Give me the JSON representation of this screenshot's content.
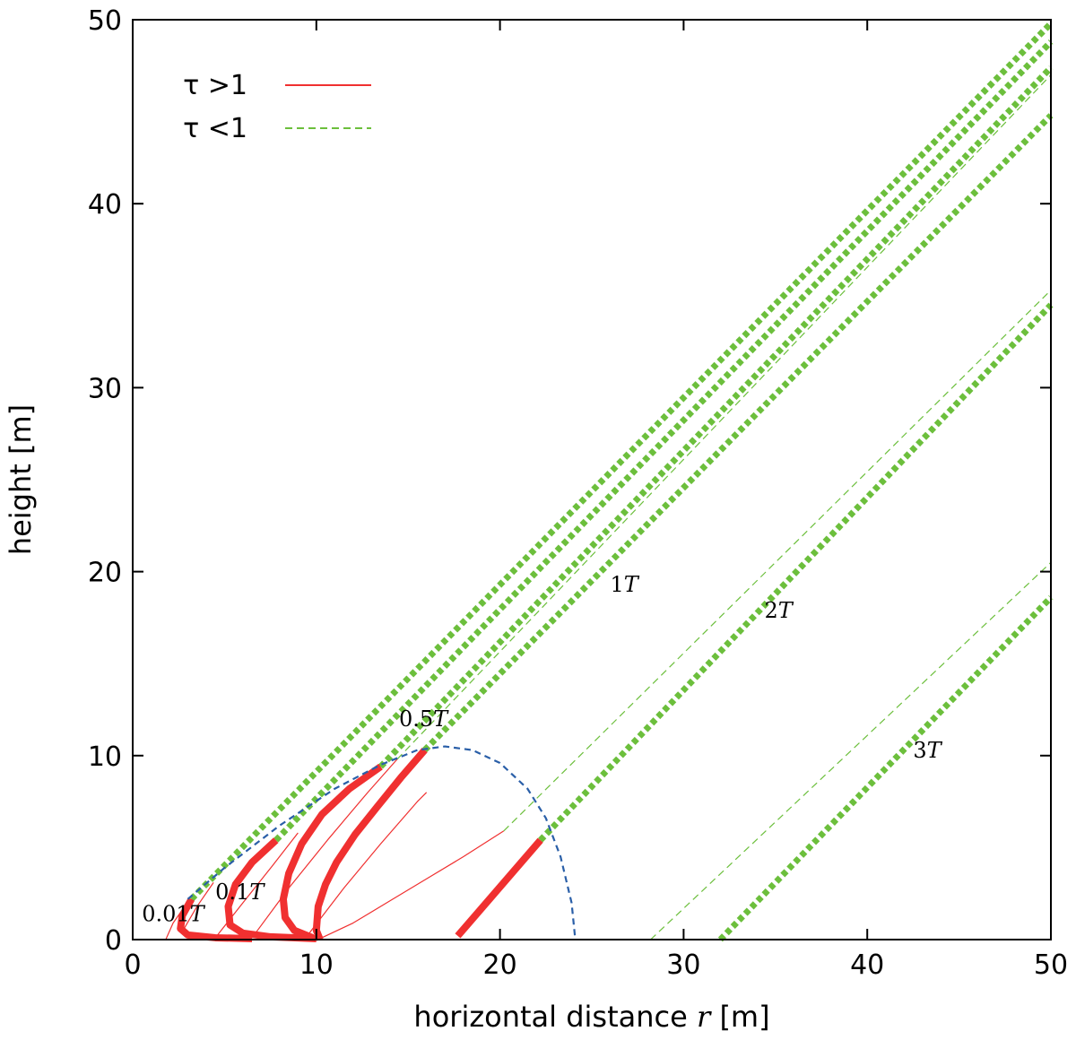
{
  "chart_data": {
    "type": "line",
    "xlabel": {
      "prefix": "horizontal distance ",
      "var": "r",
      "suffix": " [m]"
    },
    "ylabel": "height [m]",
    "xlim": [
      0,
      50
    ],
    "ylim": [
      0,
      50
    ],
    "xticks": [
      "0",
      "10",
      "20",
      "30",
      "40",
      "50"
    ],
    "yticks": [
      "0",
      "10",
      "20",
      "30",
      "40",
      "50"
    ],
    "grid": false,
    "legend_position": "top-left",
    "colors": {
      "tau_gt_1": "#f03030",
      "tau_lt_1": "#6cbf3c",
      "envelope": "#2a5fa8"
    },
    "legend": [
      {
        "label": "τ >1",
        "style": "solid",
        "color": "#f03030"
      },
      {
        "label": "τ <1",
        "style": "dashed",
        "color": "#6cbf3c"
      }
    ],
    "annotations": [
      {
        "num": "0.01",
        "var": "T",
        "x": 0.5,
        "y": 1.0
      },
      {
        "num": "0.1",
        "var": "T",
        "x": 4.5,
        "y": 2.2
      },
      {
        "num": "0.5",
        "var": "T",
        "x": 14.5,
        "y": 11.6
      },
      {
        "num": "1",
        "var": "T",
        "x": 26.0,
        "y": 18.9
      },
      {
        "num": "2",
        "var": "T",
        "x": 34.4,
        "y": 17.5
      },
      {
        "num": "3",
        "var": "T",
        "x": 42.5,
        "y": 9.9
      }
    ],
    "series": [
      {
        "name": "τ >1",
        "style": "thick-solid",
        "color": "#f03030",
        "points": [
          [
            3.2,
            2.2
          ],
          [
            2.7,
            1.3
          ],
          [
            2.6,
            0.6
          ],
          [
            3.0,
            0.25
          ],
          [
            4.5,
            0.1
          ],
          [
            6.5,
            0.05
          ]
        ]
      },
      {
        "name": "τ >1",
        "style": "thick-solid",
        "color": "#f03030",
        "points": [
          [
            7.8,
            5.4
          ],
          [
            6.5,
            4.2
          ],
          [
            5.6,
            3.0
          ],
          [
            5.2,
            1.8
          ],
          [
            5.3,
            0.8
          ],
          [
            6.0,
            0.35
          ],
          [
            7.5,
            0.15
          ],
          [
            10.0,
            0.05
          ]
        ]
      },
      {
        "name": "τ >1",
        "style": "thick-solid",
        "color": "#f03030",
        "points": [
          [
            13.5,
            9.4
          ],
          [
            11.8,
            8.2
          ],
          [
            10.3,
            6.8
          ],
          [
            9.2,
            5.2
          ],
          [
            8.5,
            3.6
          ],
          [
            8.2,
            2.2
          ],
          [
            8.3,
            1.2
          ],
          [
            8.8,
            0.5
          ],
          [
            9.8,
            0.1
          ]
        ]
      },
      {
        "name": "τ >1",
        "style": "thick-solid",
        "color": "#f03030",
        "points": [
          [
            15.9,
            10.3
          ],
          [
            14.6,
            8.8
          ],
          [
            13.3,
            7.2
          ],
          [
            12.1,
            5.7
          ],
          [
            11.1,
            4.2
          ],
          [
            10.5,
            3.0
          ],
          [
            10.1,
            1.8
          ],
          [
            10.0,
            0.5
          ],
          [
            10.2,
            0.0
          ]
        ]
      },
      {
        "name": "τ >1",
        "style": "thick-solid",
        "color": "#f03030",
        "points": [
          [
            17.7,
            0.2
          ],
          [
            22.2,
            5.4
          ]
        ]
      },
      {
        "name": "τ >1",
        "style": "thin-solid",
        "color": "#f03030",
        "points": [
          [
            1.8,
            0.0
          ],
          [
            2.2,
            0.9
          ],
          [
            2.9,
            1.9
          ]
        ]
      },
      {
        "name": "τ >1",
        "style": "thin-solid",
        "color": "#f03030",
        "points": [
          [
            2.8,
            0.6
          ],
          [
            3.5,
            1.8
          ],
          [
            4.4,
            3.1
          ]
        ]
      },
      {
        "name": "τ >1",
        "style": "thin-solid",
        "color": "#f03030",
        "points": [
          [
            4.5,
            0.1
          ],
          [
            6.0,
            2.0
          ],
          [
            7.6,
            4.0
          ],
          [
            9.0,
            5.8
          ]
        ]
      },
      {
        "name": "τ >1",
        "style": "thin-solid",
        "color": "#f03030",
        "points": [
          [
            6.5,
            0.1
          ],
          [
            8.5,
            2.8
          ],
          [
            10.6,
            5.4
          ],
          [
            12.8,
            8.0
          ],
          [
            14.4,
            9.8
          ]
        ]
      },
      {
        "name": "τ >1",
        "style": "thin-solid",
        "color": "#f03030",
        "points": [
          [
            9.5,
            0.2
          ],
          [
            11.5,
            2.8
          ],
          [
            13.5,
            5.2
          ],
          [
            15.5,
            7.5
          ],
          [
            16.0,
            8.0
          ]
        ]
      },
      {
        "name": "τ >1",
        "style": "thin-solid",
        "color": "#f03030",
        "points": [
          [
            9.0,
            0.0
          ],
          [
            12.5,
            0.0
          ]
        ]
      },
      {
        "name": "τ >1",
        "style": "thin-solid",
        "color": "#f03030",
        "points": [
          [
            10.3,
            0.1
          ],
          [
            12.0,
            0.9
          ],
          [
            14.0,
            2.1
          ],
          [
            16.0,
            3.3
          ],
          [
            18.0,
            4.5
          ],
          [
            20.2,
            5.9
          ]
        ]
      },
      {
        "name": "τ <1",
        "style": "thick-dashed",
        "color": "#6cbf3c",
        "points": [
          [
            3.2,
            2.2
          ],
          [
            50,
            49.8
          ]
        ]
      },
      {
        "name": "τ <1",
        "style": "thick-dashed",
        "color": "#6cbf3c",
        "points": [
          [
            7.8,
            5.4
          ],
          [
            50,
            48.8
          ]
        ]
      },
      {
        "name": "τ <1",
        "style": "thick-dashed",
        "color": "#6cbf3c",
        "points": [
          [
            13.5,
            9.4
          ],
          [
            50,
            47.4
          ]
        ]
      },
      {
        "name": "τ <1",
        "style": "thick-dashed",
        "color": "#6cbf3c",
        "points": [
          [
            15.9,
            10.3
          ],
          [
            50,
            44.8
          ]
        ]
      },
      {
        "name": "τ <1",
        "style": "thick-dashed",
        "color": "#6cbf3c",
        "points": [
          [
            22.2,
            5.4
          ],
          [
            50,
            34.5
          ]
        ]
      },
      {
        "name": "τ <1",
        "style": "thick-dashed",
        "color": "#6cbf3c",
        "points": [
          [
            32.0,
            0.0
          ],
          [
            50,
            18.6
          ]
        ]
      },
      {
        "name": "τ <1",
        "style": "thin-dashed",
        "color": "#6cbf3c",
        "points": [
          [
            14.4,
            9.8
          ],
          [
            50,
            47.0
          ]
        ]
      },
      {
        "name": "τ <1",
        "style": "thin-dashed",
        "color": "#6cbf3c",
        "points": [
          [
            20.2,
            5.9
          ],
          [
            50,
            35.3
          ]
        ]
      },
      {
        "name": "τ <1",
        "style": "thin-dashed",
        "color": "#6cbf3c",
        "points": [
          [
            28.2,
            0.0
          ],
          [
            50,
            20.5
          ]
        ]
      },
      {
        "name": "boundary",
        "style": "dashed-envelope",
        "color": "#2a5fa8",
        "points": [
          [
            3.0,
            2.2
          ],
          [
            5.0,
            3.9
          ],
          [
            8.0,
            6.2
          ],
          [
            11.0,
            8.2
          ],
          [
            13.5,
            9.5
          ],
          [
            15.5,
            10.3
          ],
          [
            17.0,
            10.5
          ],
          [
            18.5,
            10.3
          ],
          [
            20.0,
            9.6
          ],
          [
            21.5,
            8.2
          ],
          [
            22.5,
            6.6
          ],
          [
            23.3,
            4.5
          ],
          [
            23.9,
            2.0
          ],
          [
            24.1,
            0.0
          ]
        ]
      }
    ]
  }
}
